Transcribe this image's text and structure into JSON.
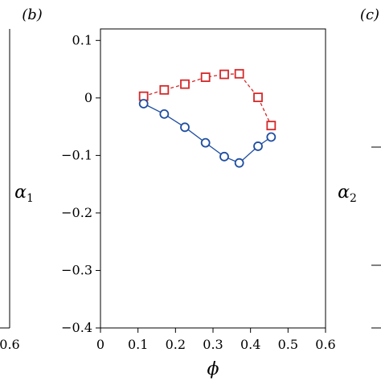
{
  "chart_data": {
    "type": "line",
    "panel_labels": {
      "left": "(b)",
      "right": "(c)"
    },
    "left_panel_tick": "0.6",
    "xlabel": "ϕ",
    "ylabel": "α",
    "ylabel_sub": "1",
    "right_ylabel": "α",
    "right_ylabel_sub": "2",
    "xlim": [
      0,
      0.6
    ],
    "ylim": [
      -0.4,
      0.12
    ],
    "x_ticks": [
      "0",
      "0.1",
      "0.2",
      "0.3",
      "0.4",
      "0.5",
      "0.6"
    ],
    "x_tick_values": [
      0,
      0.1,
      0.2,
      0.3,
      0.4,
      0.5,
      0.6
    ],
    "y_ticks": [
      "0.1",
      "0",
      "−0.1",
      "−0.2",
      "−0.3",
      "−0.4"
    ],
    "y_tick_values": [
      0.1,
      0,
      -0.1,
      -0.2,
      -0.3,
      -0.4
    ],
    "series": [
      {
        "marker": "square",
        "line_style": "dashed",
        "color": "#d62728",
        "x": [
          0.115,
          0.17,
          0.225,
          0.28,
          0.33,
          0.37,
          0.42,
          0.455
        ],
        "y": [
          0.003,
          0.014,
          0.024,
          0.036,
          0.041,
          0.042,
          0.001,
          -0.048
        ]
      },
      {
        "marker": "circle",
        "line_style": "solid",
        "color": "#1f4ea1",
        "x": [
          0.115,
          0.17,
          0.225,
          0.28,
          0.33,
          0.37,
          0.42,
          0.455
        ],
        "y": [
          -0.01,
          -0.028,
          -0.051,
          -0.078,
          -0.102,
          -0.113,
          -0.084,
          -0.068
        ]
      }
    ]
  }
}
